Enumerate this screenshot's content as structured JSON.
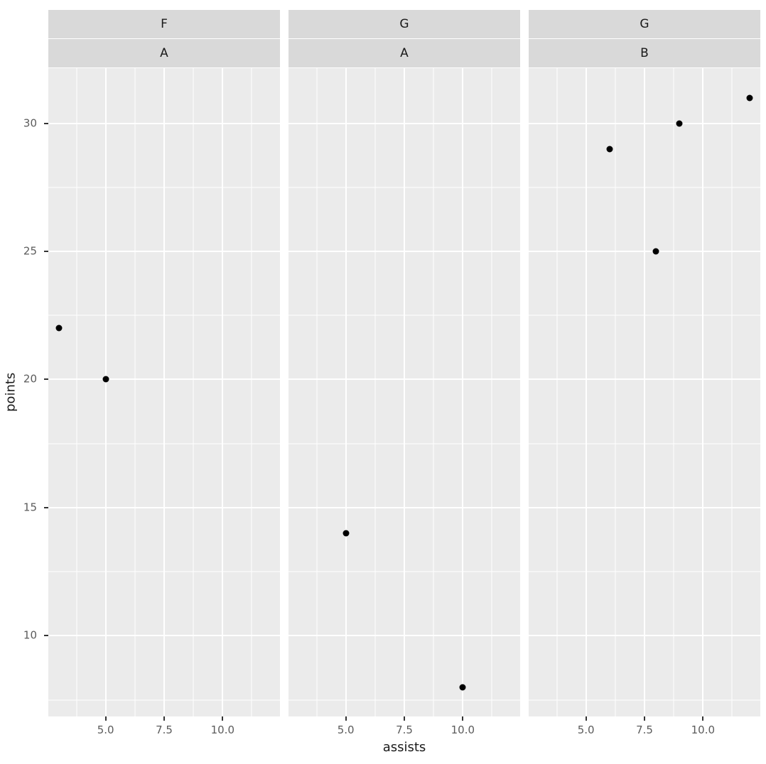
{
  "figure": {
    "background": "#FFFFFF",
    "panel_background": "#EBEBEB",
    "strip_background": "#D9D9D9",
    "grid_color": "#FFFFFF",
    "point_color": "#000000",
    "axis_text_color": "#5B5B5B",
    "axis_title_color": "#1A1A1A",
    "strip_text_color": "#1A1A1A",
    "tick_mark_color": "#333333"
  },
  "chart_data": {
    "type": "scatter",
    "title": "",
    "xlabel": "assists",
    "ylabel": "points",
    "grid": true,
    "legend": false,
    "x_domain": [
      2.55,
      12.45
    ],
    "y_domain": [
      6.85,
      32.15
    ],
    "x_major_ticks": [
      5.0,
      7.5,
      10.0
    ],
    "x_tick_labels": [
      "5.0",
      "7.5",
      "10.0"
    ],
    "x_minor_ticks": [
      3.75,
      6.25,
      8.75,
      11.25
    ],
    "y_major_ticks": [
      10,
      15,
      20,
      25,
      30
    ],
    "y_tick_labels": [
      "10",
      "15",
      "20",
      "25",
      "30"
    ],
    "y_minor_ticks": [
      7.5,
      12.5,
      17.5,
      22.5,
      27.5
    ],
    "facets": [
      {
        "strip_top": "F",
        "strip_bottom": "A",
        "points": [
          {
            "x": 3,
            "y": 22
          },
          {
            "x": 5,
            "y": 20
          }
        ]
      },
      {
        "strip_top": "G",
        "strip_bottom": "A",
        "points": [
          {
            "x": 5,
            "y": 14
          },
          {
            "x": 10,
            "y": 8
          }
        ]
      },
      {
        "strip_top": "G",
        "strip_bottom": "B",
        "points": [
          {
            "x": 6,
            "y": 29
          },
          {
            "x": 8,
            "y": 25
          },
          {
            "x": 9,
            "y": 30
          },
          {
            "x": 12,
            "y": 31
          }
        ]
      }
    ]
  }
}
